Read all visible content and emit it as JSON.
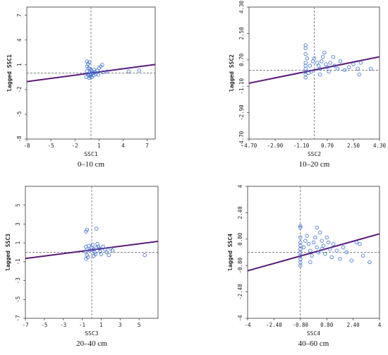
{
  "colors": {
    "points": "#3a6fd8",
    "regression_line": "#5b1a7a",
    "axes": "#333333",
    "reference_lines": "#555555"
  },
  "chart_data": [
    {
      "type": "scatter",
      "panel_title": "0–10 cm",
      "xlabel": "SSC1",
      "ylabel": "lagged SSC1",
      "xlim": [
        -8,
        8
      ],
      "ylim": [
        -8,
        8
      ],
      "xticks": [
        "-8",
        "-5",
        "-2",
        "1",
        "4",
        "7"
      ],
      "xtick_values": [
        -8,
        -5,
        -2,
        1,
        4,
        7
      ],
      "yticks": [
        "7",
        "4",
        "1",
        "-2",
        "-5",
        "-8"
      ],
      "ytick_values": [
        7,
        4,
        1,
        -2,
        -5,
        -8
      ],
      "slope": 0.13,
      "intercept": 0.0,
      "reference_x": 0,
      "reference_y": 0,
      "points": [
        [
          -0.5,
          1.4
        ],
        [
          -0.4,
          1.1
        ],
        [
          -0.2,
          1.3
        ],
        [
          -0.5,
          0.8
        ],
        [
          -0.3,
          0.6
        ],
        [
          -0.1,
          0.5
        ],
        [
          0.0,
          0.3
        ],
        [
          0.1,
          0.2
        ],
        [
          0.2,
          0.0
        ],
        [
          -0.5,
          0.2
        ],
        [
          -0.4,
          -0.1
        ],
        [
          -0.3,
          -0.3
        ],
        [
          -0.1,
          -0.4
        ],
        [
          0.1,
          -0.5
        ],
        [
          0.3,
          -0.3
        ],
        [
          0.5,
          0.1
        ],
        [
          0.8,
          0.3
        ],
        [
          1.0,
          0.6
        ],
        [
          1.2,
          0.8
        ],
        [
          1.4,
          1.0
        ],
        [
          0.6,
          -0.1
        ],
        [
          0.9,
          -0.2
        ],
        [
          1.5,
          0.1
        ],
        [
          2.0,
          0.2
        ],
        [
          -0.2,
          -0.6
        ],
        [
          0.0,
          -0.2
        ],
        [
          0.4,
          0.4
        ],
        [
          4.7,
          0.2
        ],
        [
          6.0,
          0.3
        ],
        [
          -0.6,
          -0.5
        ]
      ]
    },
    {
      "type": "scatter",
      "panel_title": "10–20 cm",
      "xlabel": "SSC2",
      "ylabel": "lagged SSC2",
      "xlim": [
        -4.7,
        4.3
      ],
      "ylim": [
        -4.7,
        4.3
      ],
      "xticks": [
        "-4.70",
        "-2.90",
        "-1.10",
        "0.70",
        "2.50",
        "4.30"
      ],
      "xtick_values": [
        -4.7,
        -2.9,
        -1.1,
        0.7,
        2.5,
        4.3
      ],
      "yticks": [
        "4.30",
        "2.50",
        "0.70",
        "-1.10",
        "-2.90",
        "-4.70"
      ],
      "ytick_values": [
        4.3,
        2.5,
        0.7,
        -1.1,
        -2.9,
        -4.7
      ],
      "slope": 0.2,
      "intercept": 0.05,
      "reference_x": -0.2,
      "reference_y": 0.0,
      "points": [
        [
          -0.8,
          1.5
        ],
        [
          -0.8,
          1.7
        ],
        [
          -0.8,
          1.1
        ],
        [
          -0.7,
          0.8
        ],
        [
          -0.8,
          0.5
        ],
        [
          -0.8,
          0.3
        ],
        [
          -0.8,
          0.1
        ],
        [
          -0.8,
          -0.1
        ],
        [
          -0.8,
          -0.3
        ],
        [
          -0.8,
          -0.5
        ],
        [
          -0.6,
          -0.2
        ],
        [
          -0.5,
          0.3
        ],
        [
          -0.3,
          0.6
        ],
        [
          -0.2,
          0.8
        ],
        [
          0.0,
          0.5
        ],
        [
          0.1,
          0.3
        ],
        [
          0.2,
          0.1
        ],
        [
          0.3,
          0.6
        ],
        [
          0.4,
          0.9
        ],
        [
          0.5,
          1.2
        ],
        [
          0.6,
          0.4
        ],
        [
          0.7,
          0.2
        ],
        [
          0.8,
          -0.1
        ],
        [
          0.9,
          0.5
        ],
        [
          1.1,
          0.9
        ],
        [
          1.2,
          0.3
        ],
        [
          1.4,
          0.1
        ],
        [
          1.6,
          0.6
        ],
        [
          1.9,
          0.0
        ],
        [
          2.2,
          0.2
        ],
        [
          2.5,
          0.4
        ],
        [
          2.8,
          0.1
        ],
        [
          2.9,
          -0.3
        ],
        [
          3.0,
          0.5
        ],
        [
          3.7,
          0.1
        ],
        [
          -0.4,
          -0.1
        ],
        [
          0.2,
          -0.3
        ]
      ]
    },
    {
      "type": "scatter",
      "panel_title": "20–40 cm",
      "xlabel": "SSC3",
      "ylabel": "lagged SSC3",
      "xlim": [
        -7,
        7
      ],
      "ylim": [
        -7,
        7
      ],
      "xticks": [
        "-7",
        "-5",
        "-3",
        "-1",
        "1",
        "3",
        "5"
      ],
      "xtick_values": [
        -7,
        -5,
        -3,
        -1,
        1,
        3,
        5
      ],
      "yticks": [
        "5",
        "3",
        "1",
        "-1",
        "-3",
        "-5",
        "-7"
      ],
      "ytick_values": [
        5,
        3,
        1,
        -1,
        -3,
        -5,
        -7
      ],
      "slope": 0.13,
      "intercept": 0.25,
      "reference_x": 0,
      "reference_y": 0,
      "points": [
        [
          -0.6,
          2.2
        ],
        [
          -0.5,
          2.4
        ],
        [
          0.5,
          2.5
        ],
        [
          -0.6,
          0.6
        ],
        [
          -0.5,
          0.3
        ],
        [
          -0.6,
          0.0
        ],
        [
          -0.5,
          -0.3
        ],
        [
          -0.4,
          -0.5
        ],
        [
          -0.2,
          0.2
        ],
        [
          0.0,
          0.5
        ],
        [
          0.1,
          0.8
        ],
        [
          0.2,
          0.3
        ],
        [
          0.3,
          0.0
        ],
        [
          0.4,
          -0.2
        ],
        [
          0.5,
          0.5
        ],
        [
          0.6,
          0.9
        ],
        [
          0.8,
          0.4
        ],
        [
          0.9,
          0.1
        ],
        [
          1.0,
          -0.2
        ],
        [
          1.2,
          0.6
        ],
        [
          1.4,
          0.3
        ],
        [
          1.6,
          0.0
        ],
        [
          1.8,
          -0.3
        ],
        [
          2.0,
          0.4
        ],
        [
          2.2,
          0.2
        ],
        [
          -0.3,
          0.7
        ],
        [
          0.2,
          -0.4
        ],
        [
          5.6,
          -0.3
        ],
        [
          -0.6,
          -0.7
        ],
        [
          0.7,
          0.6
        ]
      ]
    },
    {
      "type": "scatter",
      "panel_title": "40–60 cm",
      "xlabel": "SSC4",
      "ylabel": "lagged SSC4",
      "xlim": [
        -4,
        4
      ],
      "ylim": [
        -4,
        4
      ],
      "xticks": [
        "-4",
        "-2.40",
        "-0.80",
        "0.80",
        "2.40",
        "4"
      ],
      "xtick_values": [
        -4,
        -2.4,
        -0.8,
        0.8,
        2.4,
        4
      ],
      "yticks": [
        "4",
        "2.40",
        "0.80",
        "-0.80",
        "-2.40",
        "-4"
      ],
      "ytick_values": [
        4,
        2.4,
        0.8,
        -0.8,
        -2.4,
        -4
      ],
      "slope": 0.28,
      "intercept": 0.0,
      "reference_x": -0.8,
      "reference_y": 0,
      "points": [
        [
          -0.8,
          1.6
        ],
        [
          -0.8,
          1.5
        ],
        [
          0.2,
          1.5
        ],
        [
          -0.8,
          0.9
        ],
        [
          -0.8,
          0.6
        ],
        [
          -0.8,
          0.4
        ],
        [
          -0.8,
          0.2
        ],
        [
          -0.8,
          0.0
        ],
        [
          -0.8,
          -0.2
        ],
        [
          -0.8,
          -0.4
        ],
        [
          -0.8,
          -0.6
        ],
        [
          -0.8,
          -0.8
        ],
        [
          -0.6,
          0.3
        ],
        [
          -0.5,
          0.7
        ],
        [
          -0.4,
          1.0
        ],
        [
          -0.3,
          0.5
        ],
        [
          -0.2,
          0.1
        ],
        [
          -0.1,
          -0.2
        ],
        [
          0.0,
          0.6
        ],
        [
          0.1,
          0.9
        ],
        [
          0.2,
          0.3
        ],
        [
          0.3,
          0.0
        ],
        [
          0.4,
          1.2
        ],
        [
          0.5,
          0.7
        ],
        [
          0.6,
          0.4
        ],
        [
          0.7,
          -0.1
        ],
        [
          0.8,
          0.9
        ],
        [
          0.9,
          0.6
        ],
        [
          1.0,
          0.2
        ],
        [
          1.1,
          -0.3
        ],
        [
          1.2,
          0.5
        ],
        [
          1.4,
          0.1
        ],
        [
          1.6,
          -0.4
        ],
        [
          1.8,
          0.3
        ],
        [
          2.0,
          0.0
        ],
        [
          2.3,
          -0.5
        ],
        [
          2.6,
          0.6
        ],
        [
          2.8,
          0.5
        ],
        [
          3.0,
          -0.2
        ],
        [
          3.4,
          -0.6
        ],
        [
          -0.2,
          -0.6
        ],
        [
          0.5,
          0.2
        ]
      ]
    }
  ]
}
